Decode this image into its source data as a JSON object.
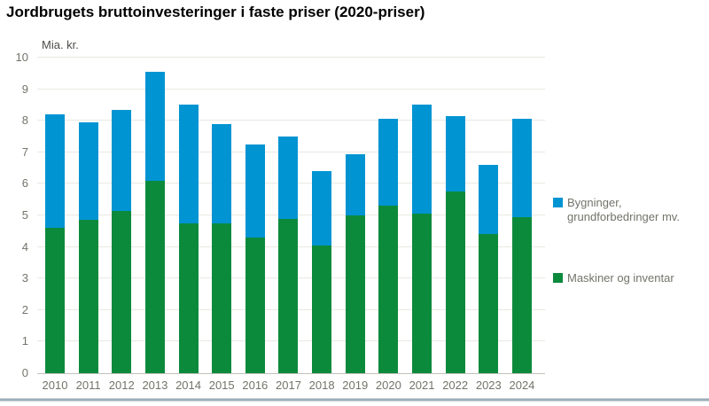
{
  "title": "Jordbrugets bruttoinvesteringer i faste priser (2020-priser)",
  "y_axis": {
    "unit": "Mia. kr.",
    "ticks": [
      "10",
      "9",
      "8",
      "7",
      "6",
      "5",
      "4",
      "3",
      "2",
      "1",
      "0"
    ]
  },
  "chart_data": {
    "type": "bar",
    "stacked": true,
    "title": "Jordbrugets bruttoinvesteringer i faste priser (2020-priser)",
    "ylabel": "Mia. kr.",
    "ylim": [
      0,
      10
    ],
    "ytick_step": 1,
    "grid": true,
    "legend_position": "right",
    "categories": [
      "2010",
      "2011",
      "2012",
      "2013",
      "2014",
      "2015",
      "2016",
      "2017",
      "2018",
      "2019",
      "2020",
      "2021",
      "2022",
      "2023",
      "2024"
    ],
    "series": [
      {
        "name": "Bygninger, grundforbedringer mv.",
        "color": "#0094d2",
        "stack": "top",
        "values": [
          3.6,
          3.1,
          3.2,
          3.45,
          3.75,
          3.15,
          2.95,
          2.6,
          2.35,
          1.95,
          2.75,
          3.45,
          2.4,
          2.2,
          3.1
        ]
      },
      {
        "name": "Maskiner og inventar",
        "color": "#0c8a3c",
        "stack": "bottom",
        "values": [
          4.6,
          4.85,
          5.15,
          6.1,
          4.75,
          4.75,
          4.3,
          4.9,
          4.05,
          5.0,
          5.3,
          5.05,
          5.75,
          4.4,
          4.95
        ]
      }
    ],
    "stacked_totals": [
      8.2,
      7.95,
      8.35,
      9.55,
      8.5,
      7.9,
      7.25,
      7.5,
      6.4,
      6.95,
      8.05,
      8.5,
      8.15,
      6.6,
      8.05
    ]
  },
  "legend": {
    "items": [
      {
        "lines": [
          "Bygninger,",
          "grundforbedringer mv."
        ],
        "color": "#0094d2"
      },
      {
        "lines": [
          "Maskiner og inventar",
          ""
        ],
        "color": "#0c8a3c"
      }
    ]
  },
  "colors": {
    "bar_blue": "#0094d2",
    "bar_green": "#0c8a3c",
    "gridline": "#e8e8e1",
    "axis_line": "#c2c2ba",
    "axis_text": "#73736a",
    "unit_text": "#4c4c48",
    "title_text": "#000000",
    "background": "#ffffff"
  }
}
